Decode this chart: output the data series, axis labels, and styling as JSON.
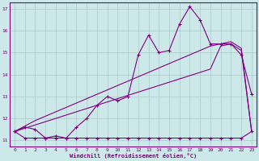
{
  "xlabel": "Windchill (Refroidissement éolien,°C)",
  "bg_color": "#cce8e8",
  "line_color": "#800080",
  "grid_color": "#aacccc",
  "xlim": [
    -0.5,
    23.5
  ],
  "ylim": [
    10.7,
    17.3
  ],
  "xticks": [
    0,
    1,
    2,
    3,
    4,
    5,
    6,
    7,
    8,
    9,
    10,
    11,
    12,
    13,
    14,
    15,
    16,
    17,
    18,
    19,
    20,
    21,
    22,
    23
  ],
  "yticks": [
    11,
    12,
    13,
    14,
    15,
    16,
    17
  ],
  "series_flat_x": [
    0,
    1,
    2,
    3,
    4,
    5,
    6,
    7,
    8,
    9,
    10,
    11,
    12,
    13,
    14,
    15,
    16,
    17,
    18,
    19,
    20,
    21,
    22,
    23
  ],
  "series_flat_y": [
    11.4,
    11.1,
    11.1,
    11.1,
    11.1,
    11.1,
    11.1,
    11.1,
    11.1,
    11.1,
    11.1,
    11.1,
    11.1,
    11.1,
    11.1,
    11.1,
    11.1,
    11.1,
    11.1,
    11.1,
    11.1,
    11.1,
    11.1,
    11.4
  ],
  "series_line1_x": [
    0,
    1,
    2,
    3,
    4,
    5,
    6,
    7,
    8,
    9,
    10,
    11,
    12,
    13,
    14,
    15,
    16,
    17,
    18,
    19,
    20,
    21,
    22,
    23
  ],
  "series_line1_y": [
    11.4,
    11.55,
    11.7,
    11.85,
    12.0,
    12.15,
    12.3,
    12.45,
    12.6,
    12.75,
    12.9,
    13.05,
    13.2,
    13.35,
    13.5,
    13.65,
    13.8,
    13.95,
    14.1,
    14.25,
    15.3,
    15.4,
    15.1,
    11.4
  ],
  "series_line2_x": [
    0,
    1,
    2,
    3,
    4,
    5,
    6,
    7,
    8,
    9,
    10,
    11,
    12,
    13,
    14,
    15,
    16,
    17,
    18,
    19,
    20,
    21,
    22,
    23
  ],
  "series_line2_y": [
    11.4,
    11.65,
    11.9,
    12.1,
    12.3,
    12.5,
    12.7,
    12.9,
    13.1,
    13.3,
    13.5,
    13.7,
    13.9,
    14.1,
    14.3,
    14.5,
    14.7,
    14.9,
    15.1,
    15.3,
    15.4,
    15.5,
    15.2,
    11.4
  ],
  "series_main_x": [
    0,
    1,
    2,
    3,
    4,
    5,
    6,
    7,
    8,
    9,
    10,
    11,
    12,
    13,
    14,
    15,
    16,
    17,
    18,
    19,
    20,
    21,
    22,
    23
  ],
  "series_main_y": [
    11.4,
    11.6,
    11.5,
    11.1,
    11.2,
    11.1,
    11.6,
    12.0,
    12.6,
    13.0,
    12.8,
    13.0,
    14.9,
    15.8,
    15.0,
    15.1,
    16.3,
    17.1,
    16.5,
    15.4,
    15.4,
    15.4,
    14.9,
    13.1
  ]
}
